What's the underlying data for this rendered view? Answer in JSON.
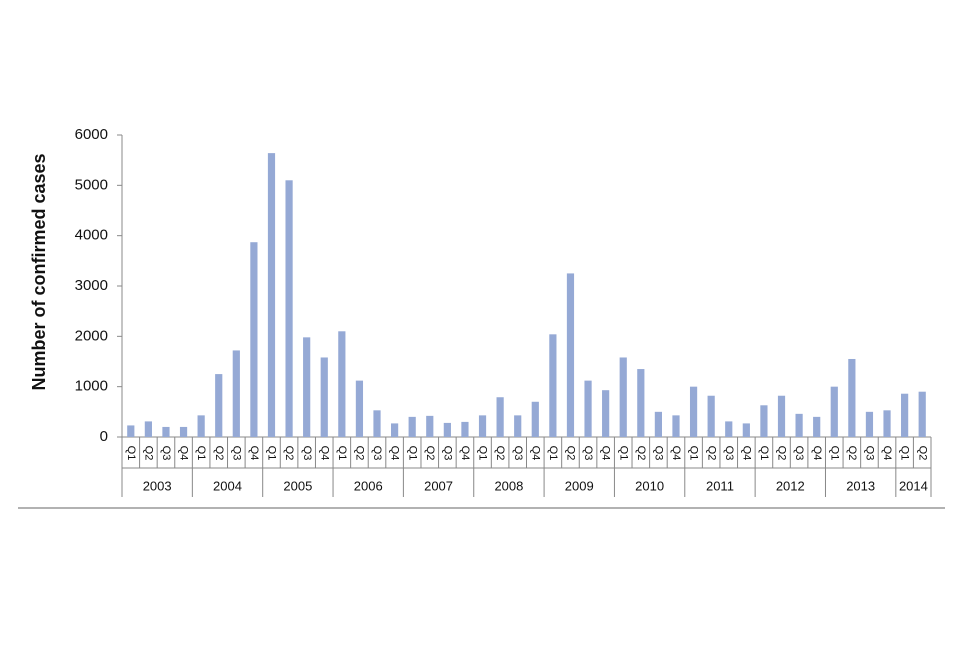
{
  "chart_data": {
    "type": "bar",
    "y_axis_label": "Number of confirmed  cases",
    "categories": [
      "Q1",
      "Q2",
      "Q3",
      "Q4",
      "Q1",
      "Q2",
      "Q3",
      "Q4",
      "Q1",
      "Q2",
      "Q3",
      "Q4",
      "Q1",
      "Q2",
      "Q3",
      "Q4",
      "Q1",
      "Q2",
      "Q3",
      "Q4",
      "Q1",
      "Q2",
      "Q3",
      "Q4",
      "Q1",
      "Q2",
      "Q3",
      "Q4",
      "Q1",
      "Q2",
      "Q3",
      "Q4",
      "Q1",
      "Q2",
      "Q3",
      "Q4",
      "Q1",
      "Q2",
      "Q3",
      "Q4",
      "Q1",
      "Q2",
      "Q3",
      "Q4",
      "Q1",
      "Q2"
    ],
    "year_groups": [
      "2003",
      "2004",
      "2005",
      "2006",
      "2007",
      "2008",
      "2009",
      "2010",
      "2011",
      "2012",
      "2013",
      "2014"
    ],
    "values": [
      230,
      310,
      200,
      200,
      430,
      1250,
      1720,
      3870,
      5640,
      5100,
      1980,
      1580,
      2100,
      1120,
      530,
      270,
      400,
      420,
      280,
      300,
      430,
      790,
      430,
      700,
      2040,
      3250,
      1120,
      930,
      1580,
      1350,
      500,
      430,
      1000,
      820,
      310,
      270,
      630,
      820,
      460,
      400,
      1000,
      1550,
      500,
      530,
      860,
      900
    ],
    "color": "#95a9d5",
    "ylim": [
      0,
      6000
    ],
    "yticks": [
      0,
      1000,
      2000,
      3000,
      4000,
      5000,
      6000
    ],
    "grid": false
  }
}
